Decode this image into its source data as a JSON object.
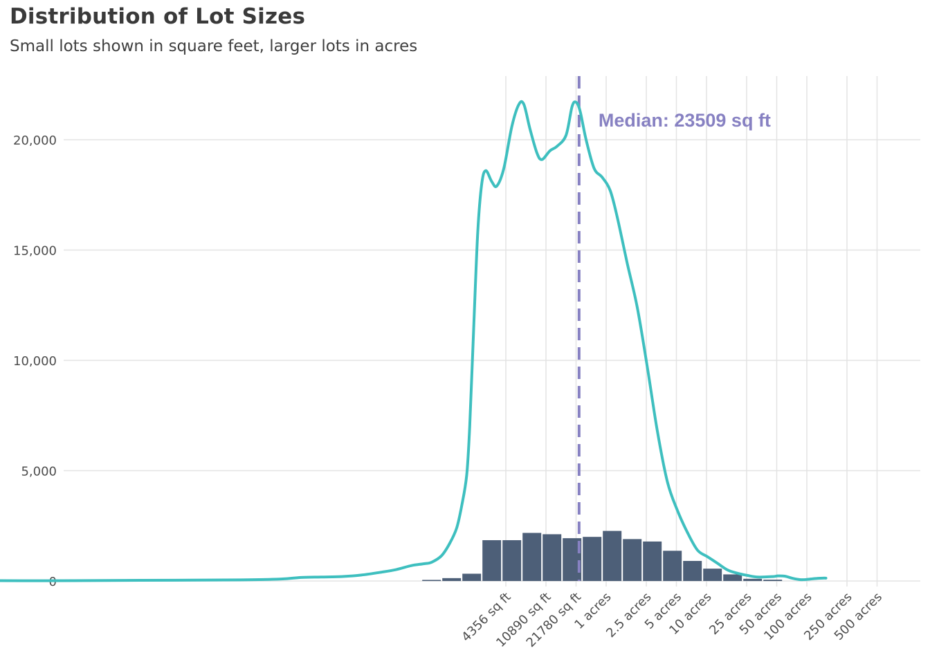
{
  "chart_data": {
    "type": "bar",
    "title": "Distribution  of Lot Sizes",
    "subtitle": "Small lots shown in square feet, larger lots in acres",
    "xlabel": "",
    "ylabel": "",
    "ylim": [
      0,
      22800
    ],
    "y_ticks": [
      {
        "value": 0,
        "label": "0"
      },
      {
        "value": 5000,
        "label": "5,000"
      },
      {
        "value": 10000,
        "label": "10,000"
      },
      {
        "value": 15000,
        "label": "15,000"
      },
      {
        "value": 20000,
        "label": "20,000"
      }
    ],
    "x_ticks": [
      {
        "label": "4356 sq ft",
        "log10": 3.64
      },
      {
        "label": "10890 sq ft",
        "log10": 4.04
      },
      {
        "label": "21780 sq ft",
        "log10": 4.34
      },
      {
        "label": "1 acres",
        "log10": 4.64
      },
      {
        "label": "2.5 acres",
        "log10": 5.04
      },
      {
        "label": "5 acres",
        "log10": 5.34
      },
      {
        "label": "10 acres",
        "log10": 5.64
      },
      {
        "label": "25 acres",
        "log10": 6.04
      },
      {
        "label": "50 acres",
        "log10": 6.34
      },
      {
        "label": "100 acres",
        "log10": 6.64
      },
      {
        "label": "250 acres",
        "log10": 7.04
      },
      {
        "label": "500 acres",
        "log10": 7.34
      }
    ],
    "series": [
      {
        "type": "bar",
        "color": "#4d5f78",
        "bin_width_log10": 0.2,
        "bins": [
          {
            "start": 2.8,
            "value": 50
          },
          {
            "start": 3.0,
            "value": 130
          },
          {
            "start": 3.2,
            "value": 330
          },
          {
            "start": 3.4,
            "value": 1850
          },
          {
            "start": 3.6,
            "value": 1850
          },
          {
            "start": 3.8,
            "value": 2180
          },
          {
            "start": 4.0,
            "value": 2120
          },
          {
            "start": 4.2,
            "value": 1940
          },
          {
            "start": 4.4,
            "value": 2000
          },
          {
            "start": 4.6,
            "value": 2270
          },
          {
            "start": 4.8,
            "value": 1900
          },
          {
            "start": 5.0,
            "value": 1790
          },
          {
            "start": 5.2,
            "value": 1370
          },
          {
            "start": 5.4,
            "value": 910
          },
          {
            "start": 5.6,
            "value": 560
          },
          {
            "start": 5.8,
            "value": 300
          },
          {
            "start": 6.0,
            "value": 100
          },
          {
            "start": 6.2,
            "value": 60
          }
        ]
      },
      {
        "type": "line",
        "color": "#3ebfbf",
        "points": [
          [
            -1.76,
            60
          ],
          [
            -1.5,
            20
          ],
          [
            -1.0,
            10
          ],
          [
            -0.5,
            20
          ],
          [
            0.0,
            30
          ],
          [
            0.5,
            40
          ],
          [
            1.0,
            50
          ],
          [
            1.4,
            90
          ],
          [
            1.6,
            160
          ],
          [
            1.8,
            180
          ],
          [
            2.0,
            200
          ],
          [
            2.2,
            270
          ],
          [
            2.4,
            400
          ],
          [
            2.55,
            520
          ],
          [
            2.7,
            700
          ],
          [
            2.82,
            780
          ],
          [
            2.9,
            850
          ],
          [
            3.0,
            1150
          ],
          [
            3.08,
            1700
          ],
          [
            3.15,
            2400
          ],
          [
            3.2,
            3400
          ],
          [
            3.25,
            4800
          ],
          [
            3.28,
            7000
          ],
          [
            3.32,
            11500
          ],
          [
            3.36,
            15800
          ],
          [
            3.4,
            18000
          ],
          [
            3.44,
            18600
          ],
          [
            3.5,
            18100
          ],
          [
            3.55,
            17900
          ],
          [
            3.62,
            18700
          ],
          [
            3.7,
            20600
          ],
          [
            3.77,
            21600
          ],
          [
            3.82,
            21600
          ],
          [
            3.88,
            20500
          ],
          [
            3.95,
            19400
          ],
          [
            4.0,
            19100
          ],
          [
            4.08,
            19500
          ],
          [
            4.15,
            19700
          ],
          [
            4.24,
            20200
          ],
          [
            4.3,
            21500
          ],
          [
            4.34,
            21700
          ],
          [
            4.38,
            21300
          ],
          [
            4.44,
            20000
          ],
          [
            4.52,
            18700
          ],
          [
            4.6,
            18300
          ],
          [
            4.68,
            17700
          ],
          [
            4.75,
            16500
          ],
          [
            4.85,
            14400
          ],
          [
            4.95,
            12400
          ],
          [
            5.05,
            9700
          ],
          [
            5.15,
            6800
          ],
          [
            5.25,
            4500
          ],
          [
            5.35,
            3200
          ],
          [
            5.45,
            2200
          ],
          [
            5.55,
            1400
          ],
          [
            5.65,
            1100
          ],
          [
            5.75,
            800
          ],
          [
            5.85,
            500
          ],
          [
            5.95,
            350
          ],
          [
            6.05,
            250
          ],
          [
            6.15,
            180
          ],
          [
            6.3,
            200
          ],
          [
            6.35,
            230
          ],
          [
            6.42,
            220
          ],
          [
            6.5,
            120
          ],
          [
            6.58,
            60
          ],
          [
            6.64,
            70
          ],
          [
            6.72,
            110
          ],
          [
            6.8,
            130
          ],
          [
            6.83,
            130
          ]
        ]
      }
    ],
    "median": {
      "log10": 4.37,
      "label": "Median: 23509 sq ft",
      "color": "#8781c2"
    },
    "grid": true
  }
}
